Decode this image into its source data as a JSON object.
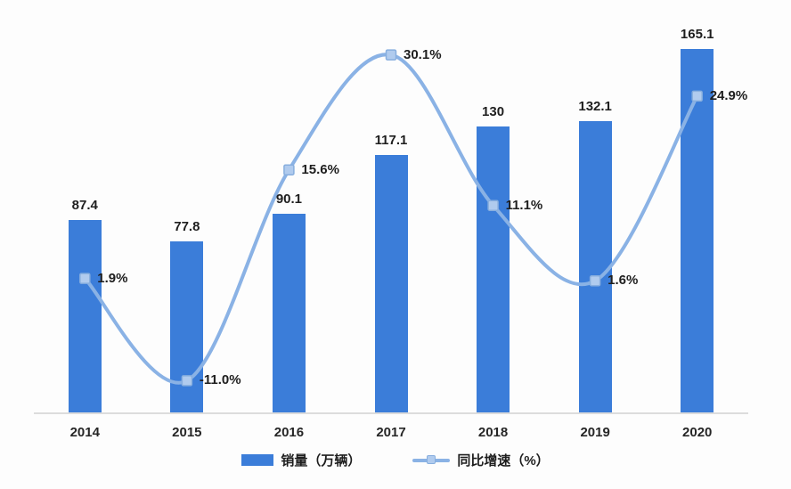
{
  "page": {
    "background": "#fdfdfd"
  },
  "chart_data": {
    "type": "bar",
    "subtype": "bar-line-combo",
    "categories": [
      "2014",
      "2015",
      "2016",
      "2017",
      "2018",
      "2019",
      "2020"
    ],
    "series": [
      {
        "name": "销量（万辆）",
        "type": "bar",
        "values": [
          87.4,
          77.8,
          90.1,
          117.1,
          130,
          132.1,
          165.1
        ],
        "labels": [
          "87.4",
          "77.8",
          "90.1",
          "117.1",
          "130",
          "132.1",
          "165.1"
        ],
        "color": "#3b7dd9",
        "axis": {
          "min": 0,
          "max": 180
        }
      },
      {
        "name": "同比增速（%）",
        "type": "line",
        "values": [
          1.9,
          -11.0,
          15.6,
          30.1,
          11.1,
          1.6,
          24.9
        ],
        "labels": [
          "1.9%",
          "-11.0%",
          "15.6%",
          "30.1%",
          "11.1%",
          "1.6%",
          "24.9%"
        ],
        "color": "#8ab2e5",
        "marker_fill": "#b0cbee",
        "marker_stroke": "#87aede",
        "axis": {
          "min": -15,
          "max": 35
        }
      }
    ],
    "title": "",
    "xlabel": "",
    "ylabel": "",
    "grid": false,
    "legend_position": "bottom",
    "axis_line_color": "#dcdcdc",
    "label_color": "#1e1e1e"
  },
  "legend": {
    "bar_label": "销量（万辆）",
    "line_label": "同比增速（%）"
  }
}
